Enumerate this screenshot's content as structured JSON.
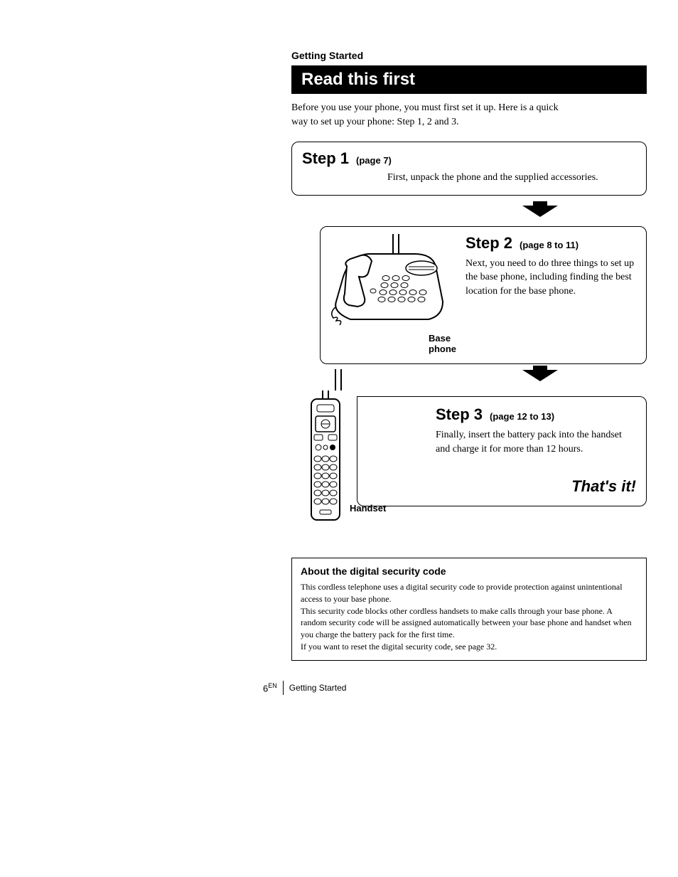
{
  "page": {
    "section_label": "Getting Started",
    "title": "Read this first",
    "intro": "Before you use your phone, you must first set it up. Here is a quick way to set up your phone: Step 1, 2 and 3.",
    "footer_page_num": "6",
    "footer_page_sup": "EN",
    "footer_label": "Getting Started"
  },
  "step1": {
    "title": "Step 1",
    "page_ref": "(page 7)",
    "body": "First, unpack the phone and the supplied accessories."
  },
  "step2": {
    "title": "Step 2",
    "page_ref": "(page 8 to 11)",
    "body": "Next, you need to do three things to set up the base phone, including finding the best location for the base phone.",
    "image_label": "Base phone"
  },
  "step3": {
    "title": "Step 3",
    "page_ref": "(page 12 to 13)",
    "body": "Finally, insert the battery pack into the handset and charge it for more than 12 hours.",
    "image_label": "Handset",
    "closing": "That's it!"
  },
  "security": {
    "title": "About the digital security code",
    "body": "This cordless telephone uses a digital security code to provide protection against unintentional access to your base phone.\nThis security code blocks other cordless handsets to make calls through your base phone. A random security code will be assigned automatically between your base phone and handset when you charge the battery pack for the first time.\nIf you want to reset the digital security code, see page 32."
  },
  "colors": {
    "text": "#000000",
    "bg": "#ffffff",
    "title_bar_bg": "#000000",
    "title_bar_fg": "#ffffff"
  }
}
